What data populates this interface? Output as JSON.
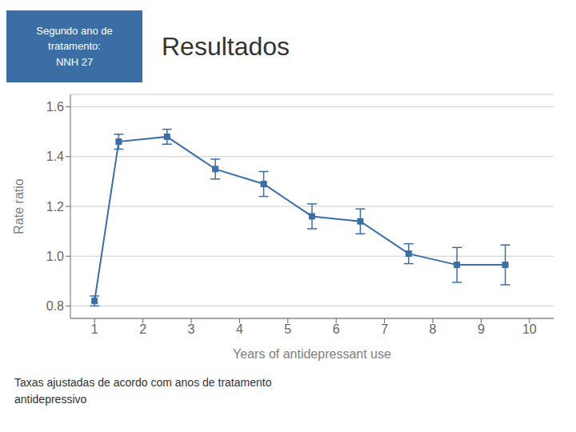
{
  "chart_data": {
    "type": "line",
    "title": "Resultados",
    "annotations": [
      "Segundo ano de\ntratamento:\nNNH 27",
      "Taxas ajustadas de acordo com anos de tratamento\nantidepressivo"
    ],
    "xlabel": "Years of antidepressant use",
    "ylabel": "Rate ratio",
    "x": [
      1.0,
      1.5,
      2.5,
      3.5,
      4.5,
      5.5,
      6.5,
      7.5,
      8.5,
      9.5
    ],
    "values": [
      0.82,
      1.46,
      1.48,
      1.35,
      1.29,
      1.16,
      1.14,
      1.01,
      0.965,
      0.965
    ],
    "yerr_low": [
      0.02,
      0.03,
      0.03,
      0.04,
      0.05,
      0.05,
      0.05,
      0.04,
      0.07,
      0.08
    ],
    "yerr_high": [
      0.02,
      0.03,
      0.03,
      0.04,
      0.05,
      0.05,
      0.05,
      0.04,
      0.07,
      0.08
    ],
    "color": "#3b6ea5",
    "marker": "square",
    "line_style": "solid",
    "xlim": [
      0.5,
      10.5
    ],
    "ylim": [
      0.75,
      1.65
    ],
    "xticks": [
      1,
      2,
      3,
      4,
      5,
      6,
      7,
      8,
      9,
      10
    ],
    "yticks": [
      0.8,
      {
        "value": 1.0,
        "label": "1.0"
      },
      1.2,
      1.4,
      1.6
    ],
    "grid": true
  }
}
